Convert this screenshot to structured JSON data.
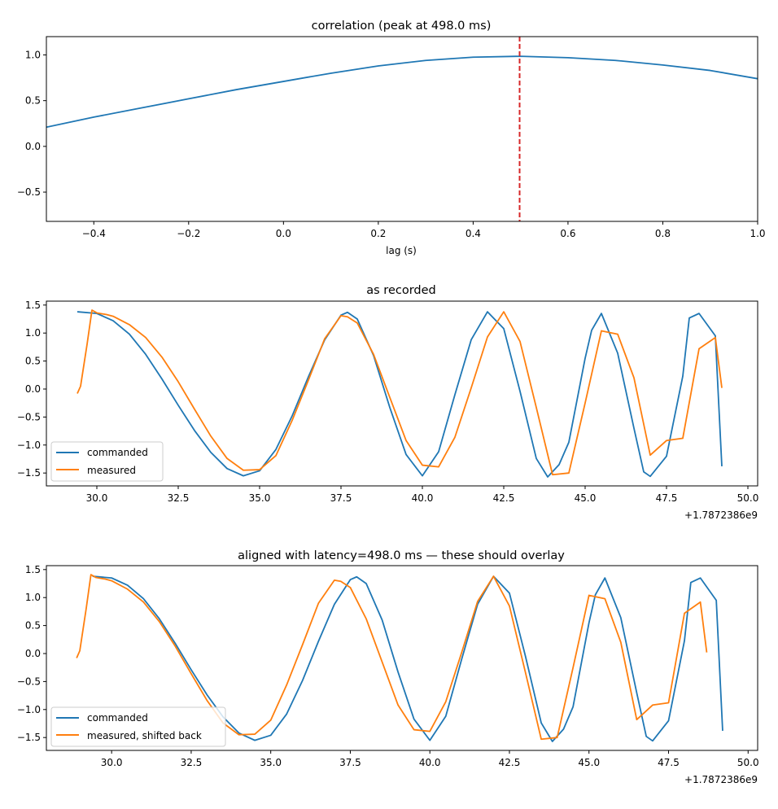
{
  "colors": {
    "commanded": "#1f77b4",
    "measured": "#ff7f0e",
    "peak_line": "#d62728",
    "axes": "#000000"
  },
  "chart_data": [
    {
      "type": "line",
      "title": "correlation (peak at 498.0 ms)",
      "xlabel": "lag (s)",
      "ylabel": "",
      "xlim": [
        -0.5,
        1.0
      ],
      "ylim": [
        -0.82,
        1.2
      ],
      "xticks": [
        -0.4,
        -0.2,
        0.0,
        0.2,
        0.4,
        0.6,
        0.8,
        1.0
      ],
      "xtick_labels": [
        "−0.4",
        "−0.2",
        "0.0",
        "0.2",
        "0.4",
        "0.6",
        "0.8",
        "1.0"
      ],
      "yticks": [
        -0.5,
        0.0,
        0.5,
        1.0
      ],
      "ytick_labels": [
        "−0.5",
        "0.0",
        "0.5",
        "1.0"
      ],
      "peak_lag": 0.498,
      "series": [
        {
          "x": [
            -0.5,
            -0.4,
            -0.3,
            -0.2,
            -0.1,
            0.0,
            0.1,
            0.2,
            0.3,
            0.4,
            0.498,
            0.6,
            0.7,
            0.8,
            0.9,
            1.0
          ],
          "values": [
            0.21,
            0.32,
            0.42,
            0.52,
            0.62,
            0.71,
            0.8,
            0.88,
            0.94,
            0.975,
            0.985,
            0.97,
            0.94,
            0.89,
            0.83,
            0.74
          ]
        }
      ]
    },
    {
      "type": "line",
      "title": "as recorded",
      "xlabel": "",
      "offset_text": "+1.7872386e9",
      "xlim": [
        28.45,
        50.3
      ],
      "ylim": [
        -1.73,
        1.57
      ],
      "xticks": [
        30.0,
        32.5,
        35.0,
        37.5,
        40.0,
        42.5,
        45.0,
        47.5,
        50.0
      ],
      "xtick_labels": [
        "30.0",
        "32.5",
        "35.0",
        "37.5",
        "40.0",
        "42.5",
        "45.0",
        "47.5",
        "50.0"
      ],
      "yticks": [
        -1.5,
        -1.0,
        -0.5,
        0.0,
        0.5,
        1.0,
        1.5
      ],
      "ytick_labels": [
        "−1.5",
        "−1.0",
        "−0.5",
        "0.0",
        "0.5",
        "1.0",
        "1.5"
      ],
      "legend": {
        "placement": "lower-left",
        "entries": [
          "commanded",
          "measured"
        ]
      },
      "series": [
        {
          "name": "commanded",
          "x": [
            29.4,
            30.0,
            30.5,
            31.0,
            31.5,
            32.0,
            32.5,
            33.0,
            33.5,
            34.0,
            34.5,
            35.0,
            35.5,
            36.0,
            36.5,
            37.0,
            37.5,
            37.7,
            38.0,
            38.5,
            39.0,
            39.5,
            40.0,
            40.5,
            41.0,
            41.5,
            42.0,
            42.5,
            43.0,
            43.5,
            43.85,
            44.2,
            44.5,
            45.0,
            45.2,
            45.5,
            46.0,
            46.5,
            46.8,
            47.0,
            47.5,
            48.0,
            48.2,
            48.5,
            49.0,
            49.2
          ],
          "values": [
            1.38,
            1.35,
            1.22,
            0.98,
            0.62,
            0.18,
            -0.29,
            -0.74,
            -1.13,
            -1.42,
            -1.55,
            -1.46,
            -1.08,
            -0.48,
            0.22,
            0.88,
            1.32,
            1.37,
            1.25,
            0.6,
            -0.33,
            -1.17,
            -1.55,
            -1.12,
            -0.1,
            0.88,
            1.38,
            1.08,
            -0.04,
            -1.24,
            -1.57,
            -1.35,
            -0.95,
            0.55,
            1.05,
            1.35,
            0.64,
            -0.7,
            -1.48,
            -1.56,
            -1.2,
            0.23,
            1.27,
            1.35,
            0.95,
            -1.38
          ]
        },
        {
          "name": "measured",
          "x": [
            29.4,
            29.5,
            29.7,
            29.85,
            30.0,
            30.3,
            30.5,
            31.0,
            31.5,
            32.0,
            32.5,
            33.0,
            33.5,
            34.0,
            34.5,
            35.0,
            35.5,
            36.0,
            36.5,
            37.0,
            37.5,
            37.7,
            38.0,
            38.5,
            39.0,
            39.5,
            40.0,
            40.5,
            41.0,
            41.5,
            42.0,
            42.5,
            43.0,
            43.5,
            44.0,
            44.5,
            45.0,
            45.5,
            46.0,
            46.5,
            47.0,
            47.5,
            48.0,
            48.5,
            49.0,
            49.2
          ],
          "values": [
            -0.08,
            0.05,
            0.8,
            1.41,
            1.36,
            1.33,
            1.3,
            1.15,
            0.92,
            0.57,
            0.13,
            -0.36,
            -0.84,
            -1.24,
            -1.45,
            -1.44,
            -1.19,
            -0.56,
            0.16,
            0.9,
            1.31,
            1.29,
            1.18,
            0.62,
            -0.15,
            -0.92,
            -1.36,
            -1.39,
            -0.86,
            0.02,
            0.93,
            1.38,
            0.85,
            -0.33,
            -1.53,
            -1.5,
            -0.25,
            1.04,
            0.98,
            0.2,
            -1.18,
            -0.92,
            -0.88,
            0.72,
            0.92,
            0.02
          ]
        }
      ]
    },
    {
      "type": "line",
      "title": "aligned with latency=498.0 ms — these should overlay",
      "xlabel": "",
      "offset_text": "+1.7872386e9",
      "xlim": [
        27.95,
        50.3
      ],
      "ylim": [
        -1.73,
        1.57
      ],
      "xticks": [
        30.0,
        32.5,
        35.0,
        37.5,
        40.0,
        42.5,
        45.0,
        47.5,
        50.0
      ],
      "xtick_labels": [
        "30.0",
        "32.5",
        "35.0",
        "37.5",
        "40.0",
        "42.5",
        "45.0",
        "47.5",
        "50.0"
      ],
      "yticks": [
        -1.5,
        -1.0,
        -0.5,
        0.0,
        0.5,
        1.0,
        1.5
      ],
      "ytick_labels": [
        "−1.5",
        "−1.0",
        "−0.5",
        "0.0",
        "0.5",
        "1.0",
        "1.5"
      ],
      "legend": {
        "placement": "lower-left",
        "entries": [
          "commanded",
          "measured, shifted back"
        ]
      },
      "series": [
        {
          "name": "commanded",
          "x": [
            29.4,
            30.0,
            30.5,
            31.0,
            31.5,
            32.0,
            32.5,
            33.0,
            33.5,
            34.0,
            34.5,
            35.0,
            35.5,
            36.0,
            36.5,
            37.0,
            37.5,
            37.7,
            38.0,
            38.5,
            39.0,
            39.5,
            40.0,
            40.5,
            41.0,
            41.5,
            42.0,
            42.5,
            43.0,
            43.5,
            43.85,
            44.2,
            44.5,
            45.0,
            45.2,
            45.5,
            46.0,
            46.5,
            46.8,
            47.0,
            47.5,
            48.0,
            48.2,
            48.5,
            49.0,
            49.2
          ],
          "values": [
            1.38,
            1.35,
            1.22,
            0.98,
            0.62,
            0.18,
            -0.29,
            -0.74,
            -1.13,
            -1.42,
            -1.55,
            -1.46,
            -1.08,
            -0.48,
            0.22,
            0.88,
            1.32,
            1.37,
            1.25,
            0.6,
            -0.33,
            -1.17,
            -1.55,
            -1.12,
            -0.1,
            0.88,
            1.38,
            1.08,
            -0.04,
            -1.24,
            -1.57,
            -1.35,
            -0.95,
            0.55,
            1.05,
            1.35,
            0.64,
            -0.7,
            -1.48,
            -1.56,
            -1.2,
            0.23,
            1.27,
            1.35,
            0.95,
            -1.38
          ]
        },
        {
          "name": "measured, shifted back",
          "x": [
            28.9,
            29.0,
            29.2,
            29.35,
            29.5,
            29.8,
            30.0,
            30.5,
            31.0,
            31.5,
            32.0,
            32.5,
            33.0,
            33.5,
            34.0,
            34.5,
            35.0,
            35.5,
            36.0,
            36.5,
            37.0,
            37.2,
            37.5,
            38.0,
            38.5,
            39.0,
            39.5,
            40.0,
            40.5,
            41.0,
            41.5,
            42.0,
            42.5,
            43.0,
            43.5,
            44.0,
            44.5,
            45.0,
            45.5,
            46.0,
            46.5,
            47.0,
            47.5,
            48.0,
            48.5,
            48.7
          ],
          "values": [
            -0.08,
            0.05,
            0.8,
            1.41,
            1.36,
            1.33,
            1.3,
            1.15,
            0.92,
            0.57,
            0.13,
            -0.36,
            -0.84,
            -1.24,
            -1.45,
            -1.44,
            -1.19,
            -0.56,
            0.16,
            0.9,
            1.31,
            1.29,
            1.18,
            0.62,
            -0.15,
            -0.92,
            -1.36,
            -1.39,
            -0.86,
            0.02,
            0.93,
            1.38,
            0.85,
            -0.33,
            -1.53,
            -1.5,
            -0.25,
            1.04,
            0.98,
            0.2,
            -1.18,
            -0.92,
            -0.88,
            0.72,
            0.92,
            0.02
          ]
        }
      ]
    }
  ]
}
